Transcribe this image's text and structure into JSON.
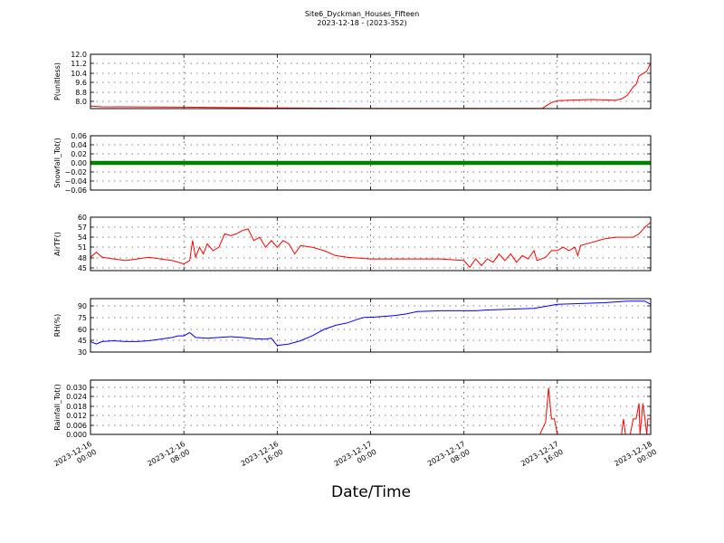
{
  "title": "Site6_Dyckman_Houses_Fifteen",
  "subtitle": "2023-12-18 - (2023-352)",
  "xlabel": "Date/Time",
  "chart_data": {
    "type": "line",
    "shared_x": {
      "range": [
        "2023-12-16 00:00",
        "2023-12-18 00:00"
      ],
      "ticks": [
        {
          "label": [
            "2023-12-16",
            "00:00"
          ],
          "t": "2023-12-16 00:00"
        },
        {
          "label": [
            "2023-12-16",
            "08:00"
          ],
          "t": "2023-12-16 08:00"
        },
        {
          "label": [
            "2023-12-16",
            "16:00"
          ],
          "t": "2023-12-16 16:00"
        },
        {
          "label": [
            "2023-12-17",
            "00:00"
          ],
          "t": "2023-12-17 00:00"
        },
        {
          "label": [
            "2023-12-17",
            "08:00"
          ],
          "t": "2023-12-17 08:00"
        },
        {
          "label": [
            "2023-12-17",
            "16:00"
          ],
          "t": "2023-12-17 16:00"
        },
        {
          "label": [
            "2023-12-18",
            "00:00"
          ],
          "t": "2023-12-18 00:00"
        }
      ]
    },
    "panels": [
      {
        "ylabel": "P(unitless)",
        "color": "#ff0000",
        "ylim": [
          7.5,
          12.0
        ],
        "yticks": [
          "12.0",
          "11.2",
          "10.4",
          "9.6",
          "8.8",
          "8.0"
        ],
        "grid": true,
        "series": [
          {
            "t": "2023-12-16 00:00",
            "v": 7.7
          },
          {
            "t": "2023-12-16 01:00",
            "v": 7.65
          },
          {
            "t": "2023-12-16 08:00",
            "v": 7.62
          },
          {
            "t": "2023-12-16 12:00",
            "v": 7.58
          },
          {
            "t": "2023-12-16 16:00",
            "v": 7.55
          },
          {
            "t": "2023-12-17 00:00",
            "v": 7.52
          },
          {
            "t": "2023-12-17 08:00",
            "v": 7.52
          },
          {
            "t": "2023-12-17 12:00",
            "v": 7.52
          },
          {
            "t": "2023-12-17 14:45",
            "v": 7.52
          },
          {
            "t": "2023-12-17 15:00",
            "v": 7.7
          },
          {
            "t": "2023-12-17 15:30",
            "v": 8.0
          },
          {
            "t": "2023-12-17 16:00",
            "v": 8.15
          },
          {
            "t": "2023-12-17 17:00",
            "v": 8.2
          },
          {
            "t": "2023-12-17 19:00",
            "v": 8.25
          },
          {
            "t": "2023-12-17 21:00",
            "v": 8.2
          },
          {
            "t": "2023-12-17 21:30",
            "v": 8.3
          },
          {
            "t": "2023-12-17 22:00",
            "v": 8.6
          },
          {
            "t": "2023-12-17 22:30",
            "v": 9.3
          },
          {
            "t": "2023-12-17 22:45",
            "v": 9.5
          },
          {
            "t": "2023-12-17 23:00",
            "v": 10.2
          },
          {
            "t": "2023-12-17 23:20",
            "v": 10.4
          },
          {
            "t": "2023-12-17 23:40",
            "v": 10.6
          },
          {
            "t": "2023-12-18 00:00",
            "v": 11.3
          }
        ]
      },
      {
        "ylabel": "Snowfall_Tot()",
        "color": "#008000",
        "ylim": [
          -0.06,
          0.06
        ],
        "yticks": [
          "0.06",
          "0.04",
          "0.02",
          "0.00",
          "−0.02",
          "−0.04",
          "−0.06"
        ],
        "grid": true,
        "constant": 0.0,
        "marker": "dot"
      },
      {
        "ylabel": "AirTF()",
        "color": "#ff0000",
        "ylim": [
          44,
          60
        ],
        "yticks": [
          "60",
          "57",
          "54",
          "51",
          "48",
          "45"
        ],
        "grid": true,
        "series": [
          {
            "t": "2023-12-16 00:00",
            "v": 48
          },
          {
            "t": "2023-12-16 00:30",
            "v": 49.5
          },
          {
            "t": "2023-12-16 01:00",
            "v": 48
          },
          {
            "t": "2023-12-16 02:00",
            "v": 47.5
          },
          {
            "t": "2023-12-16 03:00",
            "v": 47
          },
          {
            "t": "2023-12-16 04:00",
            "v": 47.5
          },
          {
            "t": "2023-12-16 05:00",
            "v": 48
          },
          {
            "t": "2023-12-16 06:00",
            "v": 47.5
          },
          {
            "t": "2023-12-16 07:00",
            "v": 47
          },
          {
            "t": "2023-12-16 08:00",
            "v": 46
          },
          {
            "t": "2023-12-16 08:30",
            "v": 47
          },
          {
            "t": "2023-12-16 08:45",
            "v": 53
          },
          {
            "t": "2023-12-16 09:00",
            "v": 48
          },
          {
            "t": "2023-12-16 09:20",
            "v": 51
          },
          {
            "t": "2023-12-16 09:40",
            "v": 49
          },
          {
            "t": "2023-12-16 10:00",
            "v": 52
          },
          {
            "t": "2023-12-16 10:30",
            "v": 50
          },
          {
            "t": "2023-12-16 11:00",
            "v": 51
          },
          {
            "t": "2023-12-16 11:30",
            "v": 55
          },
          {
            "t": "2023-12-16 12:00",
            "v": 54.5
          },
          {
            "t": "2023-12-16 12:30",
            "v": 55
          },
          {
            "t": "2023-12-16 13:00",
            "v": 56
          },
          {
            "t": "2023-12-16 13:30",
            "v": 56.5
          },
          {
            "t": "2023-12-16 14:00",
            "v": 53
          },
          {
            "t": "2023-12-16 14:30",
            "v": 54
          },
          {
            "t": "2023-12-16 15:00",
            "v": 51
          },
          {
            "t": "2023-12-16 15:30",
            "v": 53
          },
          {
            "t": "2023-12-16 16:00",
            "v": 51
          },
          {
            "t": "2023-12-16 16:30",
            "v": 53
          },
          {
            "t": "2023-12-16 17:00",
            "v": 52
          },
          {
            "t": "2023-12-16 17:30",
            "v": 49
          },
          {
            "t": "2023-12-16 18:00",
            "v": 51.5
          },
          {
            "t": "2023-12-16 19:00",
            "v": 51
          },
          {
            "t": "2023-12-16 20:00",
            "v": 50
          },
          {
            "t": "2023-12-16 21:00",
            "v": 48.5
          },
          {
            "t": "2023-12-16 22:00",
            "v": 48
          },
          {
            "t": "2023-12-17 00:00",
            "v": 47.5
          },
          {
            "t": "2023-12-17 02:00",
            "v": 47.5
          },
          {
            "t": "2023-12-17 04:00",
            "v": 47.5
          },
          {
            "t": "2023-12-17 06:00",
            "v": 47.5
          },
          {
            "t": "2023-12-17 08:00",
            "v": 47
          },
          {
            "t": "2023-12-17 08:30",
            "v": 45
          },
          {
            "t": "2023-12-17 09:00",
            "v": 47.5
          },
          {
            "t": "2023-12-17 09:30",
            "v": 45.5
          },
          {
            "t": "2023-12-17 10:00",
            "v": 47.5
          },
          {
            "t": "2023-12-17 10:30",
            "v": 46.5
          },
          {
            "t": "2023-12-17 11:00",
            "v": 49
          },
          {
            "t": "2023-12-17 11:30",
            "v": 47
          },
          {
            "t": "2023-12-17 12:00",
            "v": 49
          },
          {
            "t": "2023-12-17 12:30",
            "v": 46.5
          },
          {
            "t": "2023-12-17 13:00",
            "v": 48.5
          },
          {
            "t": "2023-12-17 13:30",
            "v": 47.5
          },
          {
            "t": "2023-12-17 14:00",
            "v": 50
          },
          {
            "t": "2023-12-17 14:15",
            "v": 47
          },
          {
            "t": "2023-12-17 15:00",
            "v": 48
          },
          {
            "t": "2023-12-17 15:30",
            "v": 50
          },
          {
            "t": "2023-12-17 16:00",
            "v": 50
          },
          {
            "t": "2023-12-17 16:30",
            "v": 51
          },
          {
            "t": "2023-12-17 17:00",
            "v": 50
          },
          {
            "t": "2023-12-17 17:30",
            "v": 51
          },
          {
            "t": "2023-12-17 17:45",
            "v": 48.5
          },
          {
            "t": "2023-12-17 18:00",
            "v": 51.5
          },
          {
            "t": "2023-12-17 19:00",
            "v": 52.5
          },
          {
            "t": "2023-12-17 20:00",
            "v": 53.5
          },
          {
            "t": "2023-12-17 21:00",
            "v": 54
          },
          {
            "t": "2023-12-17 22:00",
            "v": 54
          },
          {
            "t": "2023-12-17 22:30",
            "v": 54
          },
          {
            "t": "2023-12-17 23:00",
            "v": 55
          },
          {
            "t": "2023-12-17 23:30",
            "v": 57
          },
          {
            "t": "2023-12-18 00:00",
            "v": 58.5
          }
        ]
      },
      {
        "ylabel": "RH(%)",
        "color": "#0000ff",
        "ylim": [
          30,
          96
        ],
        "yticks": [
          "90",
          "75",
          "60",
          "45",
          "30"
        ],
        "grid": true,
        "series": [
          {
            "t": "2023-12-16 00:00",
            "v": 43
          },
          {
            "t": "2023-12-16 00:30",
            "v": 40
          },
          {
            "t": "2023-12-16 01:00",
            "v": 43
          },
          {
            "t": "2023-12-16 02:00",
            "v": 44
          },
          {
            "t": "2023-12-16 03:00",
            "v": 43
          },
          {
            "t": "2023-12-16 04:00",
            "v": 43
          },
          {
            "t": "2023-12-16 05:00",
            "v": 44
          },
          {
            "t": "2023-12-16 06:00",
            "v": 46
          },
          {
            "t": "2023-12-16 07:00",
            "v": 48
          },
          {
            "t": "2023-12-16 07:30",
            "v": 50
          },
          {
            "t": "2023-12-16 08:00",
            "v": 50
          },
          {
            "t": "2023-12-16 08:30",
            "v": 54
          },
          {
            "t": "2023-12-16 09:00",
            "v": 48
          },
          {
            "t": "2023-12-16 10:00",
            "v": 47
          },
          {
            "t": "2023-12-16 11:00",
            "v": 48
          },
          {
            "t": "2023-12-16 12:00",
            "v": 49
          },
          {
            "t": "2023-12-16 13:00",
            "v": 48
          },
          {
            "t": "2023-12-16 14:00",
            "v": 46.5
          },
          {
            "t": "2023-12-16 15:00",
            "v": 46
          },
          {
            "t": "2023-12-16 15:30",
            "v": 47
          },
          {
            "t": "2023-12-16 16:00",
            "v": 38
          },
          {
            "t": "2023-12-16 17:00",
            "v": 40
          },
          {
            "t": "2023-12-16 18:00",
            "v": 44
          },
          {
            "t": "2023-12-16 19:00",
            "v": 50
          },
          {
            "t": "2023-12-16 20:00",
            "v": 58
          },
          {
            "t": "2023-12-16 21:00",
            "v": 63
          },
          {
            "t": "2023-12-16 22:00",
            "v": 66
          },
          {
            "t": "2023-12-16 23:00",
            "v": 71
          },
          {
            "t": "2023-12-16 23:30",
            "v": 73
          },
          {
            "t": "2023-12-17 00:00",
            "v": 73
          },
          {
            "t": "2023-12-17 01:00",
            "v": 74
          },
          {
            "t": "2023-12-17 02:00",
            "v": 75
          },
          {
            "t": "2023-12-17 03:00",
            "v": 77
          },
          {
            "t": "2023-12-17 04:00",
            "v": 80
          },
          {
            "t": "2023-12-17 06:00",
            "v": 81
          },
          {
            "t": "2023-12-17 08:00",
            "v": 81
          },
          {
            "t": "2023-12-17 09:00",
            "v": 81
          },
          {
            "t": "2023-12-17 10:00",
            "v": 82
          },
          {
            "t": "2023-12-17 12:00",
            "v": 83
          },
          {
            "t": "2023-12-17 14:00",
            "v": 84
          },
          {
            "t": "2023-12-17 16:00",
            "v": 89
          },
          {
            "t": "2023-12-17 18:00",
            "v": 90
          },
          {
            "t": "2023-12-17 20:00",
            "v": 91
          },
          {
            "t": "2023-12-17 22:00",
            "v": 93
          },
          {
            "t": "2023-12-17 23:30",
            "v": 93
          },
          {
            "t": "2023-12-18 00:00",
            "v": 89
          }
        ]
      },
      {
        "ylabel": "Rainfall_Tot()",
        "color": "#ff0000",
        "ylim": [
          0.0,
          0.035
        ],
        "yticks": [
          "0.030",
          "0.024",
          "0.018",
          "0.012",
          "0.006",
          "0.000"
        ],
        "grid": true,
        "series": [
          {
            "t": "2023-12-16 00:00",
            "v": 0.0
          },
          {
            "t": "2023-12-17 14:30",
            "v": 0.0
          },
          {
            "t": "2023-12-17 15:00",
            "v": 0.008
          },
          {
            "t": "2023-12-17 15:15",
            "v": 0.03
          },
          {
            "t": "2023-12-17 15:30",
            "v": 0.01
          },
          {
            "t": "2023-12-17 15:45",
            "v": 0.01
          },
          {
            "t": "2023-12-17 16:00",
            "v": 0.0
          },
          {
            "t": "2023-12-17 21:30",
            "v": 0.0
          },
          {
            "t": "2023-12-17 21:40",
            "v": 0.01
          },
          {
            "t": "2023-12-17 21:50",
            "v": 0.0
          },
          {
            "t": "2023-12-17 22:15",
            "v": 0.0
          },
          {
            "t": "2023-12-17 22:30",
            "v": 0.01
          },
          {
            "t": "2023-12-17 22:45",
            "v": 0.01
          },
          {
            "t": "2023-12-17 23:00",
            "v": 0.02
          },
          {
            "t": "2023-12-17 23:05",
            "v": 0.0
          },
          {
            "t": "2023-12-17 23:20",
            "v": 0.02
          },
          {
            "t": "2023-12-17 23:30",
            "v": 0.01
          },
          {
            "t": "2023-12-17 23:40",
            "v": 0.0
          },
          {
            "t": "2023-12-17 23:45",
            "v": 0.01
          },
          {
            "t": "2023-12-18 00:00",
            "v": 0.01
          }
        ]
      }
    ]
  }
}
